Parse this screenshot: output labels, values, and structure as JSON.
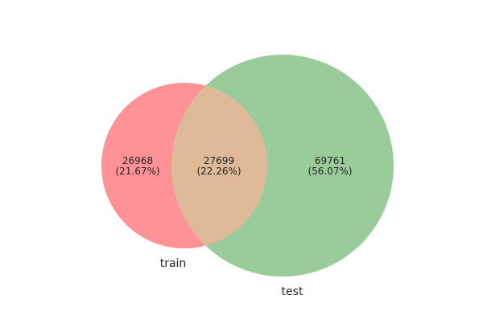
{
  "chart_data": {
    "type": "venn",
    "sets": [
      {
        "label": "train",
        "color": "#ff9296"
      },
      {
        "label": "test",
        "color": "#9acc9b"
      }
    ],
    "intersection_color": "#deba98",
    "regions": [
      {
        "id": "train_only",
        "count": "26968",
        "percent": "(21.67%)"
      },
      {
        "id": "both",
        "count": "27699",
        "percent": "(22.26%)"
      },
      {
        "id": "test_only",
        "count": "69761",
        "percent": "(56.07%)"
      }
    ]
  }
}
